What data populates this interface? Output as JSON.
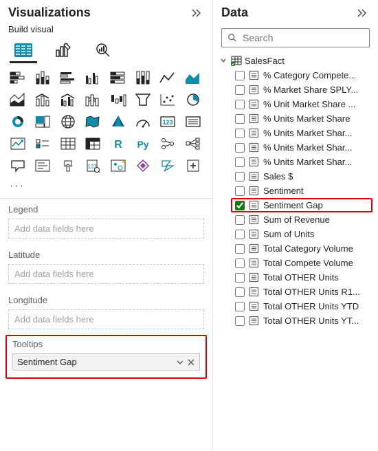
{
  "viz_pane": {
    "title": "Visualizations",
    "subtitle": "Build visual",
    "more": "···",
    "wells": {
      "legend": {
        "label": "Legend",
        "placeholder": "Add data fields here"
      },
      "latitude": {
        "label": "Latitude",
        "placeholder": "Add data fields here"
      },
      "longitude": {
        "label": "Longitude",
        "placeholder": "Add data fields here"
      },
      "tooltips": {
        "label": "Tooltips",
        "item": "Sentiment Gap"
      }
    }
  },
  "data_pane": {
    "title": "Data",
    "search_placeholder": "Search",
    "table": "SalesFact",
    "fields": [
      {
        "label": "% Category Compete...",
        "checked": false
      },
      {
        "label": "% Market Share SPLY...",
        "checked": false
      },
      {
        "label": "% Unit Market Share ...",
        "checked": false
      },
      {
        "label": "% Units Market Share",
        "checked": false
      },
      {
        "label": "% Units Market Shar...",
        "checked": false
      },
      {
        "label": "% Units Market Shar...",
        "checked": false
      },
      {
        "label": "% Units Market Shar...",
        "checked": false
      },
      {
        "label": "Sales $",
        "checked": false
      },
      {
        "label": "Sentiment",
        "checked": false
      },
      {
        "label": "Sentiment Gap",
        "checked": true,
        "highlighted": true
      },
      {
        "label": "Sum of Revenue",
        "checked": false
      },
      {
        "label": "Sum of Units",
        "checked": false
      },
      {
        "label": "Total Category Volume",
        "checked": false
      },
      {
        "label": "Total Compete Volume",
        "checked": false
      },
      {
        "label": "Total OTHER Units",
        "checked": false
      },
      {
        "label": "Total OTHER Units R1...",
        "checked": false
      },
      {
        "label": "Total OTHER Units YTD",
        "checked": false
      },
      {
        "label": "Total OTHER Units YT...",
        "checked": false
      }
    ]
  },
  "colors": {
    "accent_teal": "#118dac",
    "highlight_red": "#e00000",
    "text": "#252423",
    "muted": "#605e5c"
  }
}
